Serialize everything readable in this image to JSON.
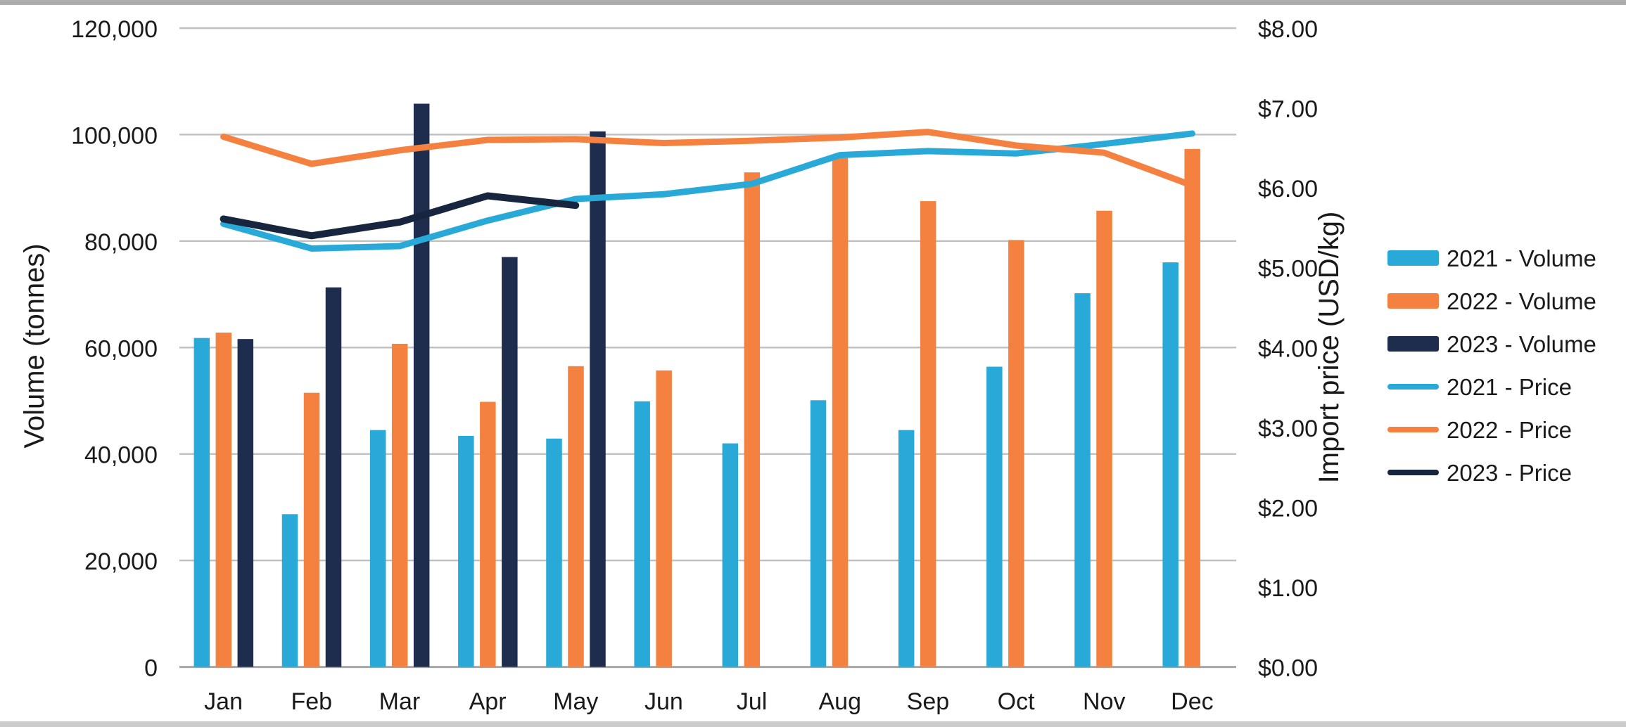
{
  "chart_data": {
    "type": "combo-bar-line",
    "title": "",
    "xlabel": "",
    "ylabel_left": "Volume (tonnes)",
    "ylabel_right": "Import price (USD/kg)",
    "grid": true,
    "legend_position": "right",
    "categories": [
      "Jan",
      "Feb",
      "Mar",
      "Apr",
      "May",
      "Jun",
      "Jul",
      "Aug",
      "Sep",
      "Oct",
      "Nov",
      "Dec"
    ],
    "y_left": {
      "min": 0,
      "max": 120000,
      "step": 20000,
      "tick_labels": [
        "0",
        "20,000",
        "40,000",
        "60,000",
        "80,000",
        "100,000",
        "120,000"
      ]
    },
    "y_right": {
      "min": 0,
      "max": 8,
      "step": 1,
      "tick_labels": [
        "$0.00",
        "$1.00",
        "$2.00",
        "$3.00",
        "$4.00",
        "$5.00",
        "$6.00",
        "$7.00",
        "$8.00"
      ]
    },
    "series": [
      {
        "name": "2021 - Volume",
        "type": "bar",
        "axis": "left",
        "color": "#29a9d7",
        "values": [
          61800,
          28700,
          44500,
          43400,
          42900,
          49900,
          42000,
          50100,
          44500,
          56400,
          70200,
          76000
        ]
      },
      {
        "name": "2022 - Volume",
        "type": "bar",
        "axis": "left",
        "color": "#f4813f",
        "values": [
          62800,
          51500,
          60700,
          49800,
          56500,
          55700,
          92900,
          95600,
          87500,
          80200,
          85700,
          97300
        ]
      },
      {
        "name": "2023 - Volume",
        "type": "bar",
        "axis": "left",
        "color": "#1e2c4e",
        "values": [
          61600,
          71300,
          105800,
          77000,
          100600,
          null,
          null,
          null,
          null,
          null,
          null,
          null
        ]
      },
      {
        "name": "2021 - Price",
        "type": "line",
        "axis": "right",
        "color": "#29a9d7",
        "values": [
          5.55,
          5.24,
          5.27,
          5.59,
          5.86,
          5.92,
          6.05,
          6.41,
          6.46,
          6.43,
          6.55,
          6.68
        ]
      },
      {
        "name": "2022 - Price",
        "type": "line",
        "axis": "right",
        "color": "#f4813f",
        "values": [
          6.64,
          6.3,
          6.47,
          6.6,
          6.61,
          6.56,
          6.59,
          6.63,
          6.7,
          6.53,
          6.44,
          6.03
        ]
      },
      {
        "name": "2023 - Price",
        "type": "line",
        "axis": "right",
        "color": "#17263e",
        "values": [
          5.61,
          5.4,
          5.57,
          5.9,
          5.78,
          null,
          null,
          null,
          null,
          null,
          null,
          null
        ]
      }
    ],
    "colors": {
      "gridline": "#c1c1c1",
      "axis_line": "#a6a6a6",
      "text": "#1a1a1a",
      "background": "#ffffff",
      "page_border_top": "#acacac",
      "page_border_bottom": "#cbcbcb"
    }
  }
}
